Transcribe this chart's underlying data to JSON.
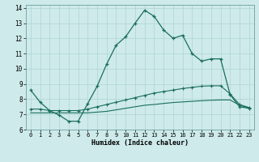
{
  "xlabel": "Humidex (Indice chaleur)",
  "background_color": "#ceeaea",
  "grid_color": "#aed4d4",
  "line_color": "#1a6e5e",
  "xlim": [
    -0.5,
    23.5
  ],
  "ylim": [
    6,
    14.2
  ],
  "xticks": [
    0,
    1,
    2,
    3,
    4,
    5,
    6,
    7,
    8,
    9,
    10,
    11,
    12,
    13,
    14,
    15,
    16,
    17,
    18,
    19,
    20,
    21,
    22,
    23
  ],
  "yticks": [
    6,
    7,
    8,
    9,
    10,
    11,
    12,
    13,
    14
  ],
  "line1_x": [
    0,
    1,
    2,
    3,
    4,
    5,
    6,
    7,
    8,
    9,
    10,
    11,
    12,
    13,
    14,
    15,
    16,
    17,
    18,
    19,
    20,
    21,
    22,
    23
  ],
  "line1_y": [
    8.6,
    7.8,
    7.25,
    6.95,
    6.55,
    6.55,
    7.7,
    8.85,
    10.3,
    11.55,
    12.1,
    13.0,
    13.85,
    13.45,
    12.55,
    12.0,
    12.2,
    11.0,
    10.5,
    10.65,
    10.65,
    8.3,
    7.5,
    7.4
  ],
  "line2_x": [
    0,
    1,
    2,
    3,
    4,
    5,
    6,
    7,
    8,
    9,
    10,
    11,
    12,
    13,
    14,
    15,
    16,
    17,
    18,
    19,
    20,
    21,
    22,
    23
  ],
  "line2_y": [
    7.35,
    7.35,
    7.25,
    7.25,
    7.25,
    7.25,
    7.35,
    7.5,
    7.65,
    7.8,
    7.95,
    8.1,
    8.25,
    8.4,
    8.5,
    8.6,
    8.7,
    8.78,
    8.85,
    8.88,
    8.88,
    8.35,
    7.65,
    7.45
  ],
  "line3_x": [
    0,
    1,
    2,
    3,
    4,
    5,
    6,
    7,
    8,
    9,
    10,
    11,
    12,
    13,
    14,
    15,
    16,
    17,
    18,
    19,
    20,
    21,
    22,
    23
  ],
  "line3_y": [
    7.1,
    7.1,
    7.1,
    7.1,
    7.1,
    7.1,
    7.1,
    7.15,
    7.2,
    7.3,
    7.4,
    7.5,
    7.6,
    7.65,
    7.72,
    7.78,
    7.82,
    7.86,
    7.9,
    7.93,
    7.95,
    7.95,
    7.6,
    7.42
  ]
}
